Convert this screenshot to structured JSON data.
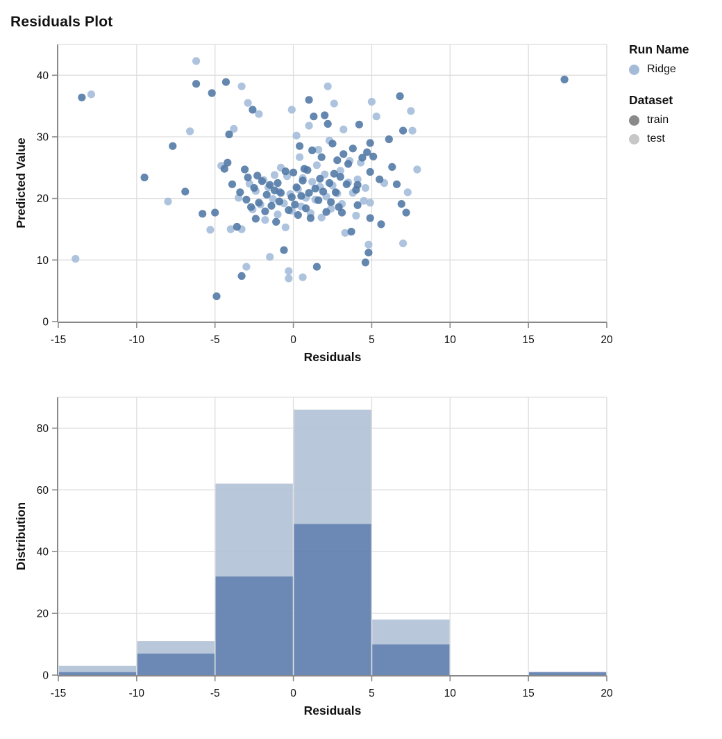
{
  "title": "Residuals Plot",
  "legend": {
    "run_name_title": "Run Name",
    "runs": [
      {
        "label": "Ridge",
        "color": "#a4bbd8"
      }
    ],
    "dataset_title": "Dataset",
    "datasets": [
      {
        "label": "train",
        "color": "#8a8a8a"
      },
      {
        "label": "test",
        "color": "#c7c7c7"
      }
    ]
  },
  "colors": {
    "train_point": "#4f76a4",
    "test_point": "#9fb9d8",
    "train_bar": "#6080ae",
    "test_bar": "#b3c3d7",
    "grid": "#dddddd",
    "axis": "#888888",
    "text": "#111111"
  },
  "chart_data": [
    {
      "type": "scatter",
      "xlabel": "Residuals",
      "ylabel": "Predicted Value",
      "xlim": [
        -15,
        20
      ],
      "ylim": [
        0,
        45
      ],
      "xticks": [
        -15,
        -10,
        -5,
        0,
        5,
        10,
        15,
        20
      ],
      "yticks": [
        0,
        10,
        20,
        30,
        40
      ],
      "grid": true,
      "legend_position": "right",
      "series": [
        {
          "name": "Ridge train",
          "points": [
            [
              -13.5,
              36.4
            ],
            [
              -9.5,
              23.4
            ],
            [
              -7.7,
              28.5
            ],
            [
              -6.9,
              21.1
            ],
            [
              -6.2,
              38.6
            ],
            [
              -5.8,
              17.5
            ],
            [
              -5.2,
              37.1
            ],
            [
              -5.0,
              17.7
            ],
            [
              -4.9,
              4.1
            ],
            [
              -4.4,
              24.8
            ],
            [
              -4.3,
              38.9
            ],
            [
              -4.2,
              25.8
            ],
            [
              -4.1,
              30.4
            ],
            [
              -3.9,
              22.3
            ],
            [
              -3.6,
              15.4
            ],
            [
              -3.4,
              21.0
            ],
            [
              -3.3,
              7.4
            ],
            [
              -3.1,
              24.7
            ],
            [
              -3.0,
              19.8
            ],
            [
              -2.9,
              23.4
            ],
            [
              -2.7,
              18.6
            ],
            [
              -2.6,
              34.4
            ],
            [
              -2.5,
              21.7
            ],
            [
              -2.4,
              16.7
            ],
            [
              -2.3,
              23.7
            ],
            [
              -2.2,
              19.3
            ],
            [
              -2.0,
              22.8
            ],
            [
              -1.8,
              17.9
            ],
            [
              -1.7,
              20.6
            ],
            [
              -1.5,
              22.2
            ],
            [
              -1.4,
              18.8
            ],
            [
              -1.2,
              21.3
            ],
            [
              -1.1,
              16.2
            ],
            [
              -1.0,
              22.5
            ],
            [
              -0.9,
              19.5
            ],
            [
              -0.8,
              20.9
            ],
            [
              -0.6,
              11.6
            ],
            [
              -0.5,
              24.4
            ],
            [
              -0.3,
              18.1
            ],
            [
              -0.1,
              20.2
            ],
            [
              0.0,
              24.2
            ],
            [
              0.1,
              19.0
            ],
            [
              0.2,
              21.8
            ],
            [
              0.3,
              17.3
            ],
            [
              0.4,
              28.5
            ],
            [
              0.5,
              20.4
            ],
            [
              0.6,
              22.9
            ],
            [
              0.7,
              24.8
            ],
            [
              0.8,
              18.4
            ],
            [
              0.9,
              24.6
            ],
            [
              1.0,
              36.0
            ],
            [
              1.0,
              20.9
            ],
            [
              1.1,
              16.8
            ],
            [
              1.2,
              27.8
            ],
            [
              1.3,
              33.3
            ],
            [
              1.4,
              21.6
            ],
            [
              1.5,
              8.9
            ],
            [
              1.6,
              19.7
            ],
            [
              1.7,
              23.2
            ],
            [
              1.8,
              26.7
            ],
            [
              1.9,
              21.1
            ],
            [
              2.0,
              33.5
            ],
            [
              2.1,
              17.8
            ],
            [
              2.2,
              32.1
            ],
            [
              2.3,
              22.5
            ],
            [
              2.4,
              19.4
            ],
            [
              2.5,
              28.9
            ],
            [
              2.6,
              24.0
            ],
            [
              2.7,
              21.0
            ],
            [
              2.8,
              26.2
            ],
            [
              2.9,
              18.6
            ],
            [
              3.0,
              23.5
            ],
            [
              3.1,
              17.7
            ],
            [
              3.2,
              27.2
            ],
            [
              3.4,
              22.3
            ],
            [
              3.5,
              25.6
            ],
            [
              3.7,
              14.6
            ],
            [
              3.8,
              28.1
            ],
            [
              4.0,
              21.4
            ],
            [
              4.1,
              22.2
            ],
            [
              4.1,
              18.9
            ],
            [
              4.2,
              32.0
            ],
            [
              4.4,
              26.6
            ],
            [
              4.6,
              9.6
            ],
            [
              4.7,
              27.5
            ],
            [
              4.8,
              11.2
            ],
            [
              4.9,
              16.8
            ],
            [
              4.9,
              24.3
            ],
            [
              4.9,
              29.0
            ],
            [
              5.1,
              26.8
            ],
            [
              5.5,
              23.1
            ],
            [
              5.6,
              15.8
            ],
            [
              6.1,
              29.6
            ],
            [
              6.3,
              25.1
            ],
            [
              6.6,
              22.3
            ],
            [
              6.8,
              36.6
            ],
            [
              6.9,
              19.1
            ],
            [
              7.0,
              31.0
            ],
            [
              7.2,
              17.7
            ],
            [
              17.3,
              39.3
            ]
          ]
        },
        {
          "name": "Ridge test",
          "points": [
            [
              -13.9,
              10.2
            ],
            [
              -12.9,
              36.9
            ],
            [
              -8.0,
              19.5
            ],
            [
              -6.6,
              30.9
            ],
            [
              -6.2,
              42.3
            ],
            [
              -5.3,
              14.9
            ],
            [
              -4.6,
              25.3
            ],
            [
              -4.0,
              15.0
            ],
            [
              -3.8,
              31.3
            ],
            [
              -3.5,
              20.1
            ],
            [
              -3.3,
              38.2
            ],
            [
              -3.3,
              15.0
            ],
            [
              -3.0,
              8.9
            ],
            [
              -2.9,
              35.5
            ],
            [
              -2.8,
              22.4
            ],
            [
              -2.6,
              18.2
            ],
            [
              -2.4,
              21.2
            ],
            [
              -2.2,
              33.7
            ],
            [
              -2.1,
              19.0
            ],
            [
              -1.9,
              23.0
            ],
            [
              -1.8,
              16.5
            ],
            [
              -1.6,
              21.8
            ],
            [
              -1.5,
              10.5
            ],
            [
              -1.3,
              19.9
            ],
            [
              -1.2,
              23.8
            ],
            [
              -1.0,
              17.4
            ],
            [
              -0.9,
              21.1
            ],
            [
              -0.8,
              25.0
            ],
            [
              -0.6,
              19.2
            ],
            [
              -0.5,
              15.3
            ],
            [
              -0.4,
              23.6
            ],
            [
              -0.3,
              8.2
            ],
            [
              -0.3,
              7.0
            ],
            [
              -0.2,
              20.7
            ],
            [
              -0.1,
              34.4
            ],
            [
              -0.1,
              18.0
            ],
            [
              0.2,
              30.2
            ],
            [
              0.3,
              21.5
            ],
            [
              0.4,
              26.7
            ],
            [
              0.5,
              18.7
            ],
            [
              0.6,
              23.3
            ],
            [
              0.6,
              7.2
            ],
            [
              0.8,
              20.1
            ],
            [
              1.0,
              31.8
            ],
            [
              1.1,
              17.6
            ],
            [
              1.2,
              22.7
            ],
            [
              1.4,
              19.8
            ],
            [
              1.5,
              25.4
            ],
            [
              1.6,
              27.9
            ],
            [
              1.7,
              21.9
            ],
            [
              1.8,
              16.9
            ],
            [
              2.0,
              23.9
            ],
            [
              2.1,
              20.3
            ],
            [
              2.2,
              38.2
            ],
            [
              2.3,
              29.4
            ],
            [
              2.4,
              18.3
            ],
            [
              2.5,
              22.1
            ],
            [
              2.6,
              35.4
            ],
            [
              2.8,
              20.8
            ],
            [
              3.0,
              24.5
            ],
            [
              3.1,
              19.1
            ],
            [
              3.2,
              31.2
            ],
            [
              3.3,
              14.4
            ],
            [
              3.5,
              22.6
            ],
            [
              3.6,
              26.1
            ],
            [
              3.8,
              20.9
            ],
            [
              4.0,
              17.2
            ],
            [
              4.1,
              23.1
            ],
            [
              4.3,
              25.8
            ],
            [
              4.5,
              19.6
            ],
            [
              4.6,
              21.7
            ],
            [
              4.8,
              12.5
            ],
            [
              4.9,
              19.3
            ],
            [
              5.0,
              35.7
            ],
            [
              5.3,
              33.3
            ],
            [
              5.8,
              22.5
            ],
            [
              7.0,
              12.7
            ],
            [
              7.3,
              21.0
            ],
            [
              7.5,
              34.2
            ],
            [
              7.6,
              31.0
            ],
            [
              7.9,
              24.7
            ]
          ]
        }
      ]
    },
    {
      "type": "bar",
      "subtype": "stacked-histogram",
      "xlabel": "Residuals",
      "ylabel": "Distribution",
      "xlim": [
        -15,
        20
      ],
      "ylim": [
        0,
        90
      ],
      "xticks": [
        -15,
        -10,
        -5,
        0,
        5,
        10,
        15,
        20
      ],
      "yticks": [
        0,
        20,
        40,
        60,
        80
      ],
      "grid": true,
      "bin_edges": [
        -15,
        -10,
        -5,
        0,
        5,
        10,
        15,
        20
      ],
      "series": [
        {
          "name": "train",
          "values": [
            1,
            7,
            32,
            49,
            10,
            0,
            1
          ]
        },
        {
          "name": "test",
          "values": [
            2,
            4,
            30,
            37,
            8,
            0,
            0
          ]
        }
      ]
    }
  ]
}
